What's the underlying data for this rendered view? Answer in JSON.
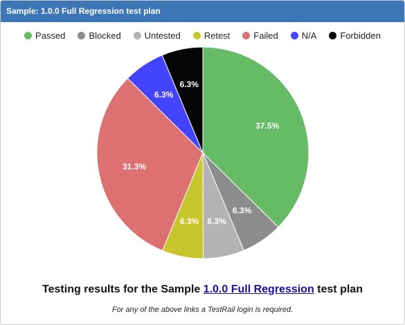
{
  "panel": {
    "title": "Sample: 1.0.0 Full Regression test plan"
  },
  "caption": {
    "prefix": "Testing results for the Sample ",
    "link_text": "1.0.0 Full Regression",
    "suffix": " test plan"
  },
  "footnote": "For any of the above links a TestRail login is required.",
  "chart_data": {
    "type": "pie",
    "categories": [
      "Passed",
      "Blocked",
      "Untested",
      "Retest",
      "Failed",
      "N/A",
      "Forbidden"
    ],
    "values": [
      37.5,
      6.3,
      6.3,
      6.3,
      31.3,
      6.3,
      6.3
    ],
    "labels": [
      "37.5%",
      "6.3%",
      "6.3%",
      "6.3%",
      "31.3%",
      "6.3%",
      "6.3%"
    ],
    "colors": [
      "#66bb66",
      "#8c8c8c",
      "#b3b3b3",
      "#c7c72d",
      "#dd7070",
      "#4444ff",
      "#050505"
    ],
    "legend": "top-center",
    "start": "top",
    "direction": "clockwise"
  }
}
